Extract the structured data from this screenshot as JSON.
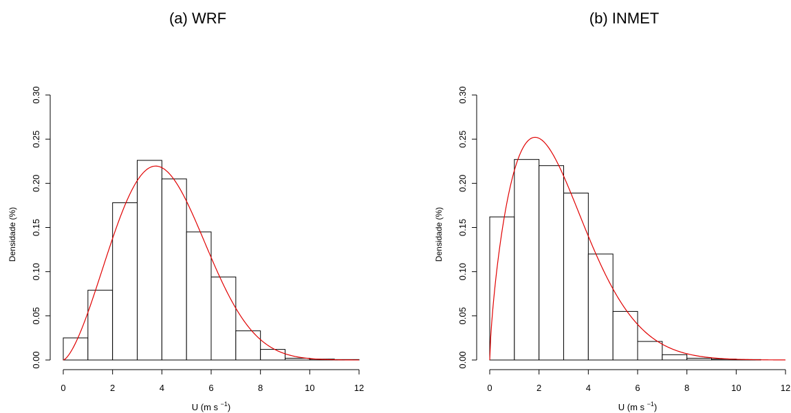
{
  "chart_data": [
    {
      "type": "bar",
      "title": "(a) WRF",
      "xlabel": "U (m s",
      "xlabel_sup": "−1",
      "xlabel_close": ")",
      "ylabel": "Densidade (%)",
      "xlim": [
        0,
        12
      ],
      "ylim": [
        0,
        0.3
      ],
      "xticks": [
        "0",
        "2",
        "4",
        "6",
        "8",
        "10",
        "12"
      ],
      "yticks": [
        "0.00",
        "0.05",
        "0.10",
        "0.15",
        "0.20",
        "0.25",
        "0.30"
      ],
      "bin_edges": [
        0,
        1,
        2,
        3,
        4,
        5,
        6,
        7,
        8,
        9,
        10,
        11,
        12
      ],
      "values": [
        0.025,
        0.079,
        0.178,
        0.226,
        0.205,
        0.145,
        0.094,
        0.033,
        0.012,
        0.002,
        0.001,
        0.0005
      ],
      "curve": {
        "color": "#e00000",
        "k": 2.5,
        "scale": 4.6,
        "x_end": 12
      }
    },
    {
      "type": "bar",
      "title": "(b) INMET",
      "xlabel": "U (m s",
      "xlabel_sup": "−1",
      "xlabel_close": ")",
      "ylabel": "Densidade (%)",
      "xlim": [
        0,
        12
      ],
      "ylim": [
        0,
        0.3
      ],
      "xticks": [
        "0",
        "2",
        "4",
        "6",
        "8",
        "10",
        "12"
      ],
      "yticks": [
        "0.00",
        "0.05",
        "0.10",
        "0.15",
        "0.20",
        "0.25",
        "0.30"
      ],
      "bin_edges": [
        0,
        1,
        2,
        3,
        4,
        5,
        6,
        7,
        8,
        9,
        10,
        11
      ],
      "values": [
        0.162,
        0.227,
        0.22,
        0.189,
        0.12,
        0.055,
        0.021,
        0.006,
        0.002,
        0.001,
        0.0005
      ],
      "curve": {
        "color": "#e00000",
        "k": 1.7,
        "scale": 3.1,
        "x_end": 12
      }
    }
  ]
}
